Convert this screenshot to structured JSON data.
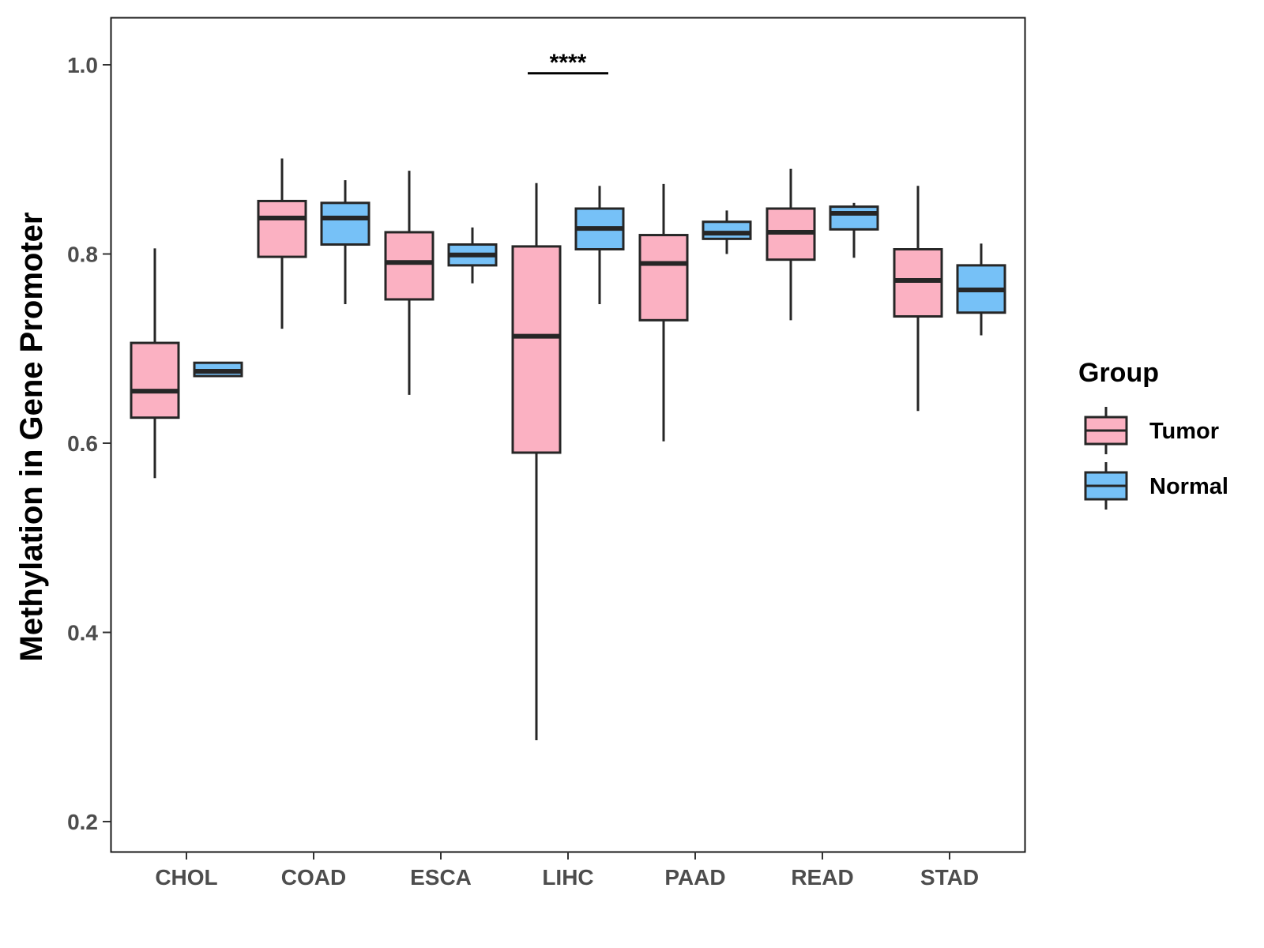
{
  "chart_data": {
    "type": "box",
    "title": "",
    "xlabel": "",
    "ylabel": "Methylation in Gene Promoter",
    "ylim": [
      0.17,
      1.05
    ],
    "yticks": [
      0.2,
      0.4,
      0.6,
      0.8,
      1.0
    ],
    "ytick_labels": [
      "0.2",
      "0.4",
      "0.6",
      "0.8",
      "1.0"
    ],
    "categories": [
      "CHOL",
      "COAD",
      "ESCA",
      "LIHC",
      "PAAD",
      "READ",
      "STAD"
    ],
    "legend": {
      "title": "Group",
      "position": "right",
      "entries": [
        {
          "name": "Tumor",
          "color": "#fbb1c2"
        },
        {
          "name": "Normal",
          "color": "#76c1f7"
        }
      ]
    },
    "series": [
      {
        "name": "Tumor",
        "color": "#fbb1c2",
        "boxes": [
          {
            "min": 0.563,
            "q1": 0.627,
            "median": 0.655,
            "q3": 0.706,
            "max": 0.806
          },
          {
            "min": 0.721,
            "q1": 0.797,
            "median": 0.838,
            "q3": 0.856,
            "max": 0.901
          },
          {
            "min": 0.651,
            "q1": 0.752,
            "median": 0.791,
            "q3": 0.823,
            "max": 0.888
          },
          {
            "min": 0.286,
            "q1": 0.59,
            "median": 0.713,
            "q3": 0.808,
            "max": 0.875
          },
          {
            "min": 0.602,
            "q1": 0.73,
            "median": 0.79,
            "q3": 0.82,
            "max": 0.874
          },
          {
            "min": 0.73,
            "q1": 0.794,
            "median": 0.823,
            "q3": 0.848,
            "max": 0.89
          },
          {
            "min": 0.634,
            "q1": 0.734,
            "median": 0.772,
            "q3": 0.805,
            "max": 0.872
          }
        ]
      },
      {
        "name": "Normal",
        "color": "#76c1f7",
        "boxes": [
          {
            "min": 0.671,
            "q1": 0.671,
            "median": 0.676,
            "q3": 0.685,
            "max": 0.685
          },
          {
            "min": 0.747,
            "q1": 0.81,
            "median": 0.838,
            "q3": 0.854,
            "max": 0.878
          },
          {
            "min": 0.769,
            "q1": 0.788,
            "median": 0.799,
            "q3": 0.81,
            "max": 0.828
          },
          {
            "min": 0.747,
            "q1": 0.805,
            "median": 0.827,
            "q3": 0.848,
            "max": 0.872
          },
          {
            "min": 0.8,
            "q1": 0.816,
            "median": 0.822,
            "q3": 0.834,
            "max": 0.846
          },
          {
            "min": 0.796,
            "q1": 0.826,
            "median": 0.843,
            "q3": 0.85,
            "max": 0.854
          },
          {
            "min": 0.714,
            "q1": 0.738,
            "median": 0.762,
            "q3": 0.788,
            "max": 0.811
          }
        ]
      }
    ],
    "annotations": [
      {
        "text": "****",
        "category": "LIHC",
        "y": 0.991
      }
    ]
  }
}
